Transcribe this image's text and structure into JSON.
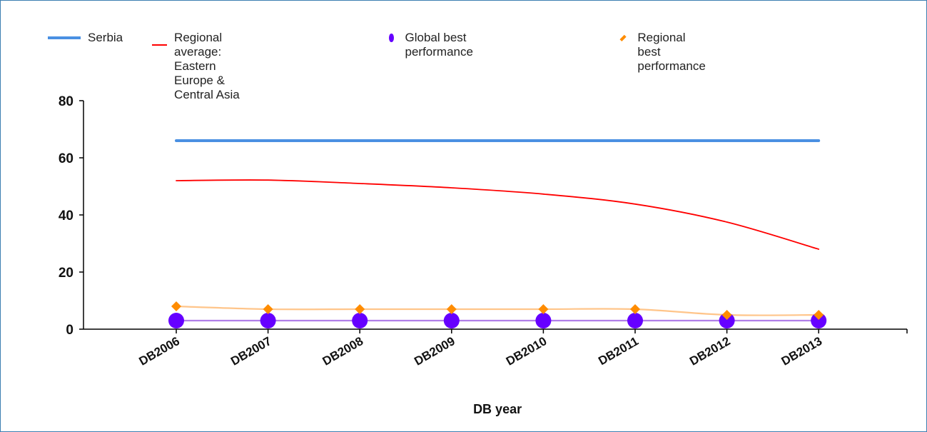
{
  "chart_data": {
    "type": "line",
    "title": "",
    "xlabel": "DB year",
    "ylabel": "",
    "categories": [
      "DB2006",
      "DB2007",
      "DB2008",
      "DB2009",
      "DB2010",
      "DB2011",
      "DB2012",
      "DB2013"
    ],
    "ylim": [
      0,
      80
    ],
    "yticks": [
      0,
      20,
      40,
      60,
      80
    ],
    "grid": false,
    "legend_position": "top",
    "series": [
      {
        "name": "Serbia",
        "marker": "none",
        "color": "#4a90e2",
        "values": [
          66,
          66,
          66,
          66,
          66,
          66,
          66,
          66
        ]
      },
      {
        "name": "Regional average: Eastern\nEurope & Central Asia",
        "marker": "none",
        "color": "#ff0000",
        "values": [
          52,
          52.2,
          51,
          49.5,
          47.3,
          43.8,
          37.5,
          28
        ]
      },
      {
        "name": "Global best performance",
        "marker": "circle",
        "color": "#6600ff",
        "line_color": "#b07fe8",
        "values": [
          3,
          3,
          3,
          3,
          3,
          3,
          3,
          3
        ]
      },
      {
        "name": "Regional best performance",
        "marker": "diamond",
        "color": "#ff8c00",
        "line_color": "#ffc58a",
        "values": [
          8,
          7,
          7,
          7,
          7,
          7,
          5,
          5
        ]
      }
    ]
  }
}
